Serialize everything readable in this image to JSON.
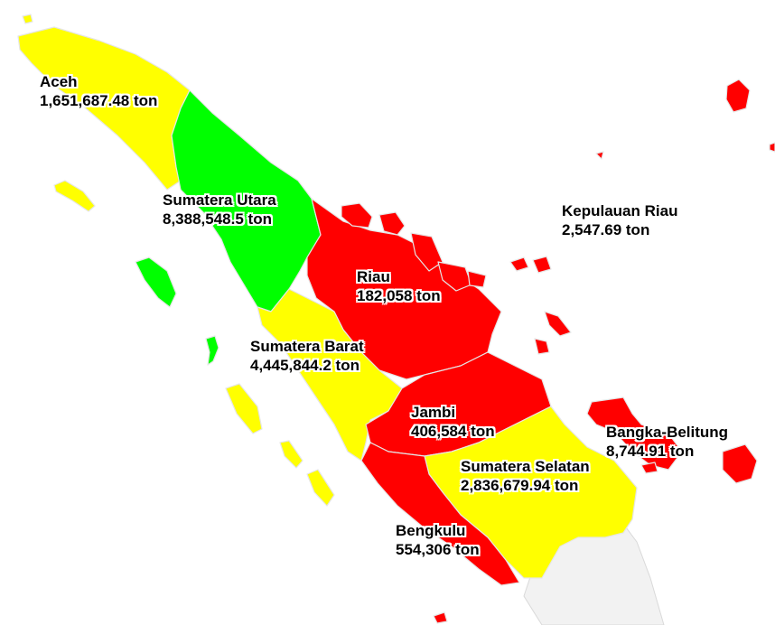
{
  "colors": {
    "low": "#ff0000",
    "medium": "#ffff00",
    "high": "#00ff00",
    "neighbor": "#f2f2f2",
    "border": "#e6e6e6"
  },
  "provinces": [
    {
      "id": "aceh",
      "name": "Aceh",
      "value": "1,651,687.48 ton",
      "category": "medium"
    },
    {
      "id": "sumut",
      "name": "Sumatera Utara",
      "value": "8,388,548.5 ton",
      "category": "high"
    },
    {
      "id": "riau",
      "name": "Riau",
      "value": "182,058 ton",
      "category": "low"
    },
    {
      "id": "kepri",
      "name": "Kepulauan Riau",
      "value": "2,547.69 ton",
      "category": "low"
    },
    {
      "id": "sumbar",
      "name": "Sumatera Barat",
      "value": "4,445,844.2 ton",
      "category": "medium"
    },
    {
      "id": "jambi",
      "name": "Jambi",
      "value": "406,584 ton",
      "category": "low"
    },
    {
      "id": "babel",
      "name": "Bangka-Belitung",
      "value": "8,744.91 ton",
      "category": "low"
    },
    {
      "id": "sumsel",
      "name": "Sumatera Selatan",
      "value": "2,836,679.94 ton",
      "category": "medium"
    },
    {
      "id": "bengkulu",
      "name": "Bengkulu",
      "value": "554,306 ton",
      "category": "low"
    }
  ]
}
